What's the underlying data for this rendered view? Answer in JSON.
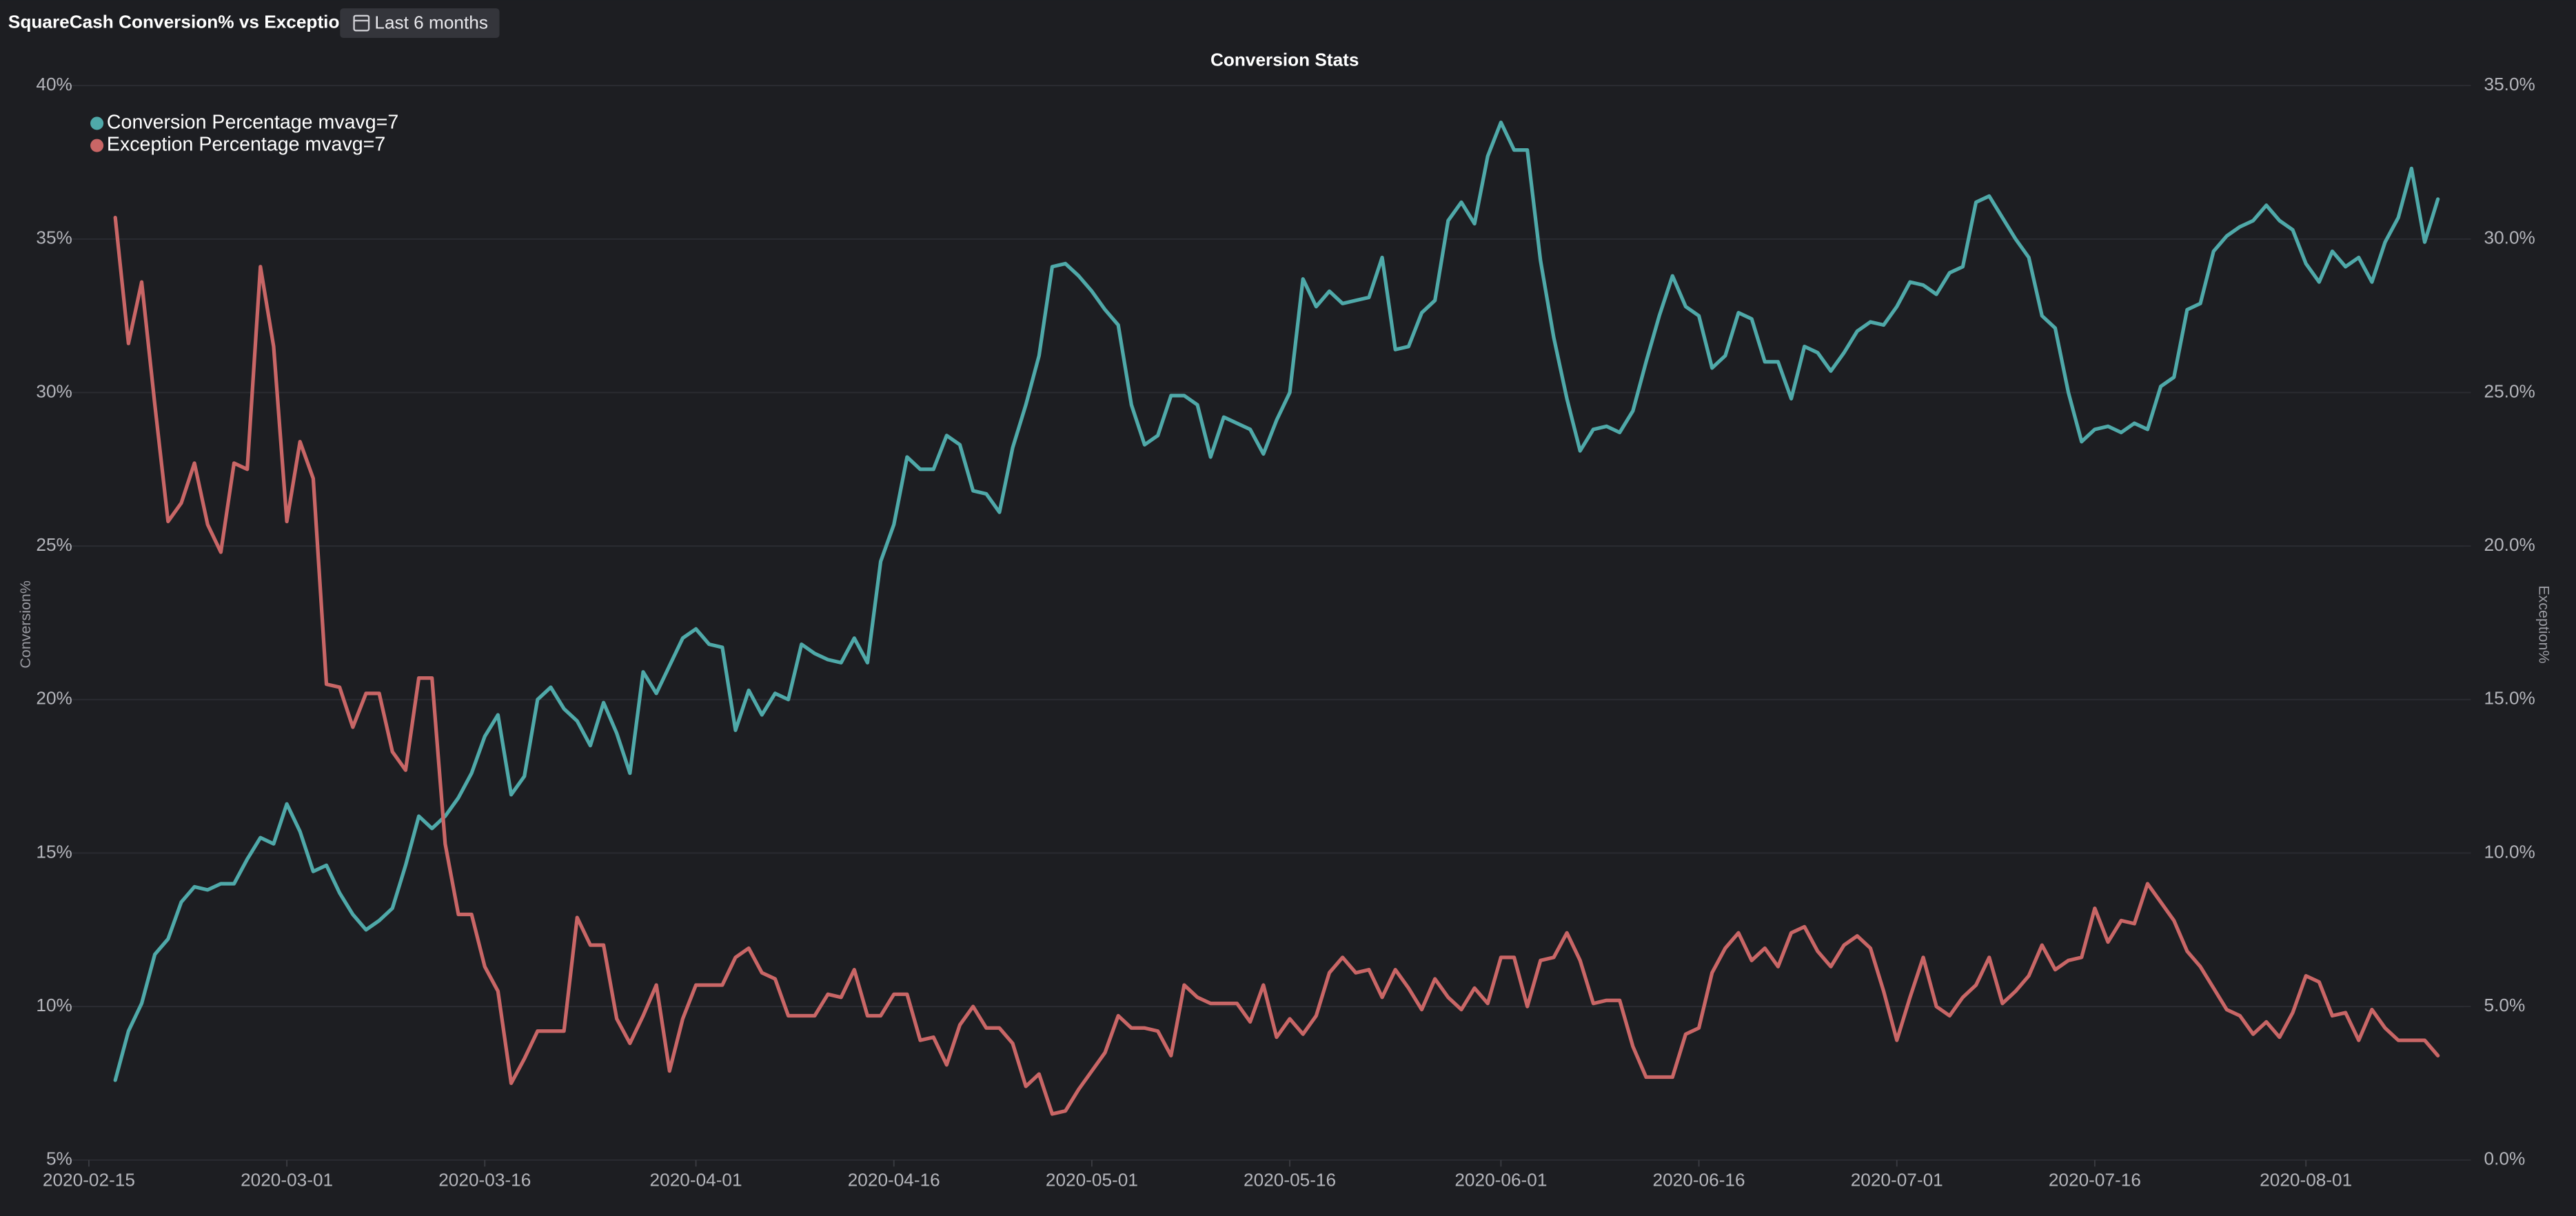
{
  "dashboard": {
    "title": "SquareCash Conversion% vs Exception%",
    "time_range": "Last 6 months"
  },
  "chart_data": {
    "type": "line",
    "title": "Conversion Stats",
    "y_label": "Conversion%",
    "y2_label": "Exception%",
    "x": [
      "2020-02-17",
      "2020-02-18",
      "2020-02-19",
      "2020-02-20",
      "2020-02-21",
      "2020-02-22",
      "2020-02-23",
      "2020-02-24",
      "2020-02-25",
      "2020-02-26",
      "2020-02-27",
      "2020-02-28",
      "2020-02-29",
      "2020-03-01",
      "2020-03-02",
      "2020-03-03",
      "2020-03-04",
      "2020-03-05",
      "2020-03-06",
      "2020-03-07",
      "2020-03-08",
      "2020-03-09",
      "2020-03-10",
      "2020-03-11",
      "2020-03-12",
      "2020-03-13",
      "2020-03-14",
      "2020-03-15",
      "2020-03-16",
      "2020-03-17",
      "2020-03-18",
      "2020-03-19",
      "2020-03-20",
      "2020-03-21",
      "2020-03-22",
      "2020-03-23",
      "2020-03-24",
      "2020-03-25",
      "2020-03-26",
      "2020-03-27",
      "2020-03-28",
      "2020-03-29",
      "2020-03-30",
      "2020-03-31",
      "2020-04-01",
      "2020-04-02",
      "2020-04-03",
      "2020-04-04",
      "2020-04-05",
      "2020-04-06",
      "2020-04-07",
      "2020-04-08",
      "2020-04-09",
      "2020-04-10",
      "2020-04-11",
      "2020-04-12",
      "2020-04-13",
      "2020-04-14",
      "2020-04-15",
      "2020-04-16",
      "2020-04-17",
      "2020-04-18",
      "2020-04-19",
      "2020-04-20",
      "2020-04-21",
      "2020-04-22",
      "2020-04-23",
      "2020-04-24",
      "2020-04-25",
      "2020-04-26",
      "2020-04-27",
      "2020-04-28",
      "2020-04-29",
      "2020-04-30",
      "2020-05-01",
      "2020-05-02",
      "2020-05-03",
      "2020-05-04",
      "2020-05-05",
      "2020-05-06",
      "2020-05-07",
      "2020-05-08",
      "2020-05-09",
      "2020-05-10",
      "2020-05-11",
      "2020-05-12",
      "2020-05-13",
      "2020-05-14",
      "2020-05-15",
      "2020-05-16",
      "2020-05-17",
      "2020-05-18",
      "2020-05-19",
      "2020-05-20",
      "2020-05-21",
      "2020-05-22",
      "2020-05-23",
      "2020-05-24",
      "2020-05-25",
      "2020-05-26",
      "2020-05-27",
      "2020-05-28",
      "2020-05-29",
      "2020-05-30",
      "2020-05-31",
      "2020-06-01",
      "2020-06-02",
      "2020-06-03",
      "2020-06-04",
      "2020-06-05",
      "2020-06-06",
      "2020-06-07",
      "2020-06-08",
      "2020-06-09",
      "2020-06-10",
      "2020-06-11",
      "2020-06-12",
      "2020-06-13",
      "2020-06-14",
      "2020-06-15",
      "2020-06-16",
      "2020-06-17",
      "2020-06-18",
      "2020-06-19",
      "2020-06-20",
      "2020-06-21",
      "2020-06-22",
      "2020-06-23",
      "2020-06-24",
      "2020-06-25",
      "2020-06-26",
      "2020-06-27",
      "2020-06-28",
      "2020-06-29",
      "2020-06-30",
      "2020-07-01",
      "2020-07-02",
      "2020-07-03",
      "2020-07-04",
      "2020-07-05",
      "2020-07-06",
      "2020-07-07",
      "2020-07-08",
      "2020-07-09",
      "2020-07-10",
      "2020-07-11",
      "2020-07-12",
      "2020-07-13",
      "2020-07-14",
      "2020-07-15",
      "2020-07-16",
      "2020-07-17",
      "2020-07-18",
      "2020-07-19",
      "2020-07-20",
      "2020-07-21",
      "2020-07-22",
      "2020-07-23",
      "2020-07-24",
      "2020-07-25",
      "2020-07-26",
      "2020-07-27",
      "2020-07-28",
      "2020-07-29",
      "2020-07-30",
      "2020-07-31",
      "2020-08-01",
      "2020-08-02",
      "2020-08-03",
      "2020-08-04",
      "2020-08-05",
      "2020-08-06",
      "2020-08-07",
      "2020-08-08",
      "2020-08-09",
      "2020-08-10",
      "2020-08-11"
    ],
    "series": [
      {
        "name": "Conversion Percentage mvavg=7",
        "color": "#4fa9a9",
        "values": [
          7.6,
          9.2,
          10.1,
          11.7,
          12.2,
          13.4,
          13.9,
          13.8,
          14.0,
          14.0,
          14.8,
          15.5,
          15.3,
          16.6,
          15.7,
          14.4,
          14.6,
          13.7,
          13.0,
          12.5,
          12.8,
          13.2,
          14.6,
          16.2,
          15.8,
          16.2,
          16.8,
          17.6,
          18.8,
          19.5,
          16.9,
          17.5,
          20.0,
          20.4,
          19.7,
          19.3,
          18.5,
          19.9,
          18.9,
          17.6,
          20.9,
          20.2,
          21.1,
          22.0,
          22.3,
          21.8,
          21.7,
          19.0,
          20.3,
          19.5,
          20.2,
          20.0,
          21.8,
          21.5,
          21.3,
          21.2,
          22.0,
          21.2,
          24.5,
          25.7,
          27.9,
          27.5,
          27.5,
          28.6,
          28.3,
          26.8,
          26.7,
          26.1,
          28.2,
          29.6,
          31.2,
          34.1,
          34.2,
          33.8,
          33.3,
          32.7,
          32.2,
          29.6,
          28.3,
          28.6,
          29.9,
          29.9,
          29.6,
          27.9,
          29.2,
          29.0,
          28.8,
          28.0,
          29.1,
          30.0,
          33.7,
          32.8,
          33.3,
          32.9,
          33.0,
          33.1,
          34.4,
          31.4,
          31.5,
          32.6,
          33.0,
          35.6,
          36.2,
          35.5,
          37.7,
          38.8,
          37.9,
          37.9,
          34.3,
          31.8,
          29.8,
          28.1,
          28.8,
          28.9,
          28.7,
          29.4,
          31.0,
          32.5,
          33.8,
          32.8,
          32.5,
          30.8,
          31.2,
          32.6,
          32.4,
          31.0,
          31.0,
          29.8,
          31.5,
          31.3,
          30.7,
          31.3,
          32.0,
          32.3,
          32.2,
          32.8,
          33.6,
          33.5,
          33.2,
          33.9,
          34.1,
          36.2,
          36.4,
          35.7,
          35.0,
          34.4,
          32.5,
          32.1,
          30.0,
          28.4,
          28.8,
          28.9,
          28.7,
          29.0,
          28.8,
          30.2,
          30.5,
          32.7,
          32.9,
          34.6,
          35.1,
          35.4,
          35.6,
          36.1,
          35.6,
          35.3,
          34.2,
          33.6,
          34.6,
          34.1,
          34.4,
          33.6,
          34.9,
          35.7,
          37.3,
          34.9,
          36.3
        ]
      },
      {
        "name": "Exception Percentage mvavg=7",
        "color": "#c96666",
        "axis": "y2",
        "values": [
          30.7,
          26.6,
          28.6,
          24.6,
          20.8,
          21.4,
          22.7,
          20.7,
          19.8,
          22.7,
          22.5,
          29.1,
          26.5,
          20.8,
          23.4,
          22.2,
          15.5,
          15.4,
          14.1,
          15.2,
          15.2,
          13.3,
          12.7,
          15.7,
          15.7,
          10.3,
          8.0,
          8.0,
          6.3,
          5.5,
          2.5,
          3.3,
          4.2,
          4.2,
          4.2,
          7.9,
          7.0,
          7.0,
          4.6,
          3.8,
          4.7,
          5.7,
          2.9,
          4.6,
          5.7,
          5.7,
          5.7,
          6.6,
          6.9,
          6.1,
          5.9,
          4.7,
          4.7,
          4.7,
          5.4,
          5.3,
          6.2,
          4.7,
          4.7,
          5.4,
          5.4,
          3.9,
          4.0,
          3.1,
          4.4,
          5.0,
          4.3,
          4.3,
          3.8,
          2.4,
          2.8,
          1.5,
          1.6,
          2.3,
          2.9,
          3.5,
          4.7,
          4.3,
          4.3,
          4.2,
          3.4,
          5.7,
          5.3,
          5.1,
          5.1,
          5.1,
          4.5,
          5.7,
          4.0,
          4.6,
          4.1,
          4.7,
          6.1,
          6.6,
          6.1,
          6.2,
          5.3,
          6.2,
          5.6,
          4.9,
          5.9,
          5.3,
          4.9,
          5.6,
          5.1,
          6.6,
          6.6,
          5.0,
          6.5,
          6.6,
          7.4,
          6.5,
          5.1,
          5.2,
          5.2,
          3.7,
          2.7,
          2.7,
          2.7,
          4.1,
          4.3,
          6.1,
          6.9,
          7.4,
          6.5,
          6.9,
          6.3,
          7.4,
          7.6,
          6.8,
          6.3,
          7.0,
          7.3,
          6.9,
          5.5,
          3.9,
          5.3,
          6.6,
          5.0,
          4.7,
          5.3,
          5.7,
          6.6,
          5.1,
          5.5,
          6.0,
          7.0,
          6.2,
          6.5,
          6.6,
          8.2,
          7.1,
          7.8,
          7.7,
          9.0,
          8.4,
          7.8,
          6.8,
          6.3,
          5.6,
          4.9,
          4.7,
          4.1,
          4.5,
          4.0,
          4.8,
          6.0,
          5.8,
          4.7,
          4.8,
          3.9,
          4.9,
          4.3,
          3.9,
          3.9,
          3.9,
          3.4
        ]
      }
    ],
    "xlim": [
      "2020-02-12",
      "2020-08-13"
    ],
    "xticks": [
      "2020-02-15",
      "2020-03-01",
      "2020-03-16",
      "2020-04-01",
      "2020-04-16",
      "2020-05-01",
      "2020-05-16",
      "2020-06-01",
      "2020-06-16",
      "2020-07-01",
      "2020-07-16",
      "2020-08-01"
    ],
    "ylim": [
      5,
      40
    ],
    "yticks": [
      {
        "value": 5,
        "label": "5%"
      },
      {
        "value": 10,
        "label": "10%"
      },
      {
        "value": 15,
        "label": "15%"
      },
      {
        "value": 20,
        "label": "20%"
      },
      {
        "value": 25,
        "label": "25%"
      },
      {
        "value": 30,
        "label": "30%"
      },
      {
        "value": 35,
        "label": "35%"
      },
      {
        "value": 40,
        "label": "40%"
      }
    ],
    "y2lim": [
      0,
      35
    ],
    "y2ticks": [
      {
        "value": 0,
        "label": "0.0%"
      },
      {
        "value": 5,
        "label": "5.0%"
      },
      {
        "value": 10,
        "label": "10.0%"
      },
      {
        "value": 15,
        "label": "15.0%"
      },
      {
        "value": 20,
        "label": "20.0%"
      },
      {
        "value": 25,
        "label": "25.0%"
      },
      {
        "value": 30,
        "label": "30.0%"
      },
      {
        "value": 35,
        "label": "35.0%"
      }
    ],
    "grid": true,
    "legend": "top-left"
  }
}
